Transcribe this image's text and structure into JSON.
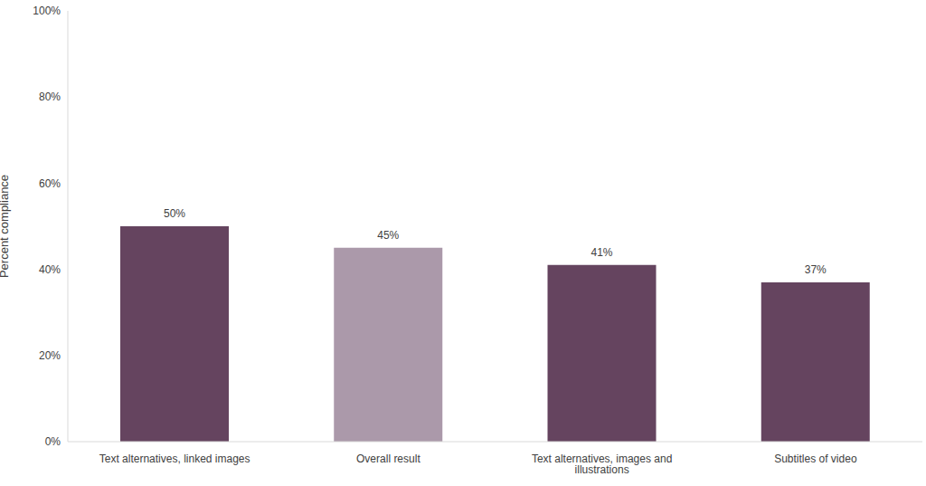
{
  "chart_data": {
    "type": "bar",
    "y_label": "Percent compliance",
    "categories": [
      "Text alternatives, linked images",
      "Overall result",
      "Text alternatives, images and illustrations",
      "Subtitles of video"
    ],
    "values": [
      50,
      45,
      41,
      37
    ],
    "value_labels": [
      "50%",
      "45%",
      "41%",
      "37%"
    ],
    "colors": [
      "#65445f",
      "#ab99aa",
      "#65445f",
      "#65445f"
    ],
    "ylim": [
      0,
      100
    ],
    "yticks": [
      {
        "value": 0,
        "label": "0%"
      },
      {
        "value": 20,
        "label": "20%"
      },
      {
        "value": 40,
        "label": "40%"
      },
      {
        "value": 60,
        "label": "60%"
      },
      {
        "value": 80,
        "label": "80%"
      },
      {
        "value": 100,
        "label": "100%"
      }
    ],
    "grid": false,
    "data_labels": true
  }
}
